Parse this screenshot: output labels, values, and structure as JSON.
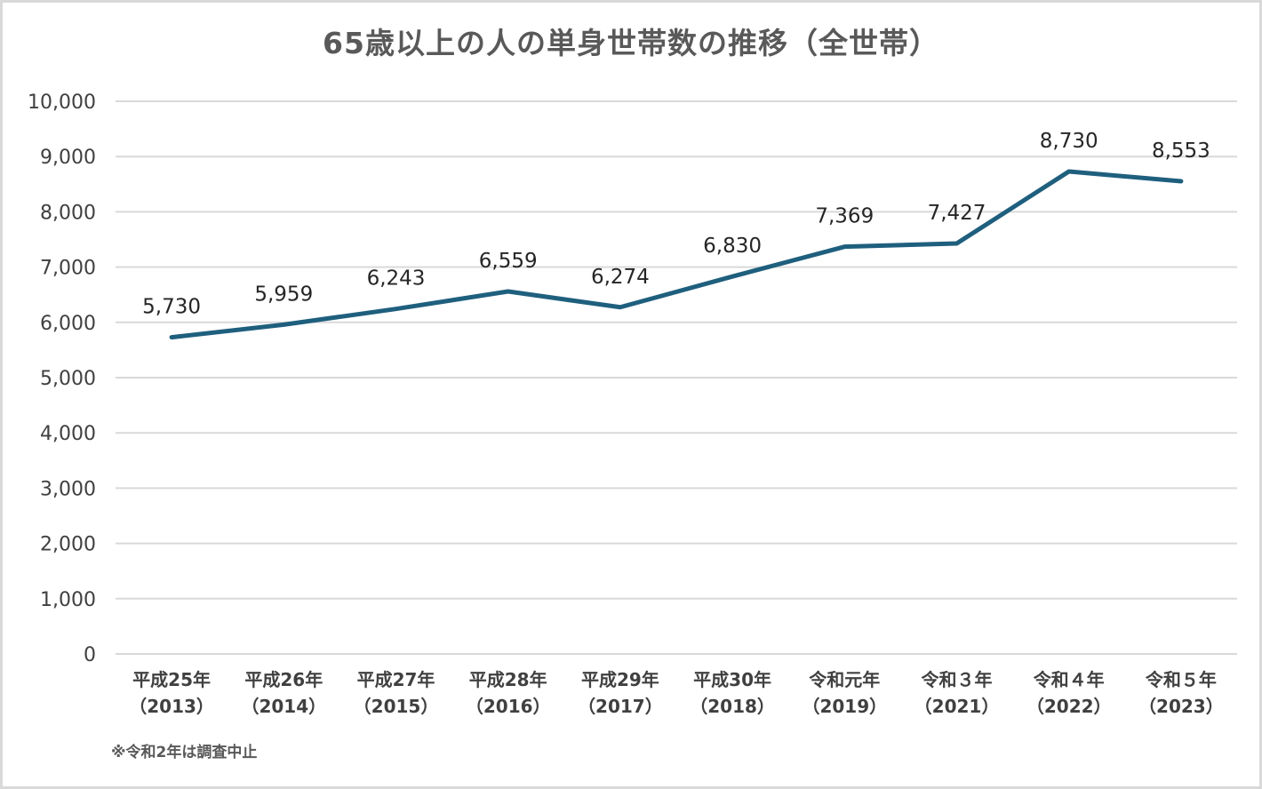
{
  "chart_data": {
    "type": "line",
    "title": "65歳以上の人の単身世帯数の推移（全世帯）",
    "categories": [
      [
        "平成25年",
        "（2013）"
      ],
      [
        "平成26年",
        "（2014）"
      ],
      [
        "平成27年",
        "（2015）"
      ],
      [
        "平成28年",
        "（2016）"
      ],
      [
        "平成29年",
        "（2017）"
      ],
      [
        "平成30年",
        "（2018）"
      ],
      [
        "令和元年",
        "（2019）"
      ],
      [
        "令和３年",
        "（2021）"
      ],
      [
        "令和４年",
        "（2022）"
      ],
      [
        "令和５年",
        "（2023）"
      ]
    ],
    "series": [
      {
        "values": [
          5730,
          5959,
          6243,
          6559,
          6274,
          6830,
          7369,
          7427,
          8730,
          8553
        ],
        "color": "#1f5f7e"
      }
    ],
    "data_labels": [
      "5,730",
      "5,959",
      "6,243",
      "6,559",
      "6,274",
      "6,830",
      "7,369",
      "7,427",
      "8,730",
      "8,553"
    ],
    "y_ticks": [
      "0",
      "1,000",
      "2,000",
      "3,000",
      "4,000",
      "5,000",
      "6,000",
      "7,000",
      "8,000",
      "9,000",
      "10,000"
    ],
    "ylim": [
      0,
      10000
    ],
    "grid": true,
    "legend": "none",
    "note": "※令和2年は調査中止"
  }
}
